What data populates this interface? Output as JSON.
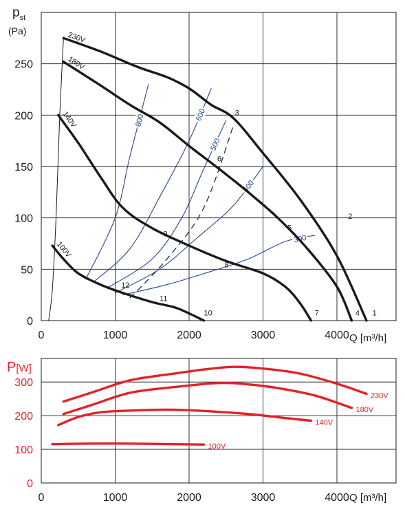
{
  "chart_data": [
    {
      "type": "line",
      "ylabel": "p",
      "ylabel_sub": "st",
      "ylabel_unit": "(Pa)",
      "xlabel": "Q [m³/h]",
      "xlim": [
        0,
        4800
      ],
      "ylim": [
        0,
        300
      ],
      "x_ticks": [
        "0",
        "1000",
        "2000",
        "3000",
        "4000"
      ],
      "y_ticks": [
        "0",
        "50",
        "100",
        "150",
        "200",
        "250"
      ],
      "grid": true,
      "series": [
        {
          "name": "230V",
          "points": [
            [
              300,
              275
            ],
            [
              800,
              262
            ],
            [
              1300,
              247
            ],
            [
              1700,
              237
            ],
            [
              2000,
              226
            ],
            [
              2300,
              210
            ],
            [
              2600,
              197
            ],
            [
              3000,
              163
            ],
            [
              3500,
              118
            ],
            [
              4000,
              63
            ],
            [
              4400,
              0
            ]
          ]
        },
        {
          "name": "180V",
          "points": [
            [
              300,
              252
            ],
            [
              800,
              229
            ],
            [
              1200,
              210
            ],
            [
              1600,
              193
            ],
            [
              2000,
              170
            ],
            [
              2400,
              148
            ],
            [
              2800,
              125
            ],
            [
              3200,
              100
            ],
            [
              3600,
              70
            ],
            [
              4000,
              33
            ],
            [
              4200,
              0
            ]
          ]
        },
        {
          "name": "140V",
          "points": [
            [
              230,
              200
            ],
            [
              500,
              173
            ],
            [
              800,
              140
            ],
            [
              1100,
              110
            ],
            [
              1500,
              90
            ],
            [
              2000,
              73
            ],
            [
              2500,
              58
            ],
            [
              3000,
              46
            ],
            [
              3300,
              33
            ],
            [
              3500,
              17
            ],
            [
              3650,
              0
            ]
          ]
        },
        {
          "name": "100V",
          "points": [
            [
              150,
              73
            ],
            [
              300,
              60
            ],
            [
              500,
              46
            ],
            [
              800,
              35
            ],
            [
              1100,
              27
            ],
            [
              1500,
              18
            ],
            [
              1800,
              13
            ],
            [
              2000,
              7
            ],
            [
              2200,
              0
            ]
          ]
        }
      ],
      "rpm_lines": [
        {
          "name": "800",
          "points": [
            [
              600,
              40
            ],
            [
              1000,
              100
            ],
            [
              1200,
              160
            ],
            [
              1450,
              230
            ]
          ]
        },
        {
          "name": "600",
          "points": [
            [
              700,
              37
            ],
            [
              1200,
              70
            ],
            [
              1600,
              120
            ],
            [
              2000,
              175
            ],
            [
              2300,
              226
            ]
          ]
        },
        {
          "name": "500",
          "points": [
            [
              900,
              32
            ],
            [
              1500,
              60
            ],
            [
              1900,
              100
            ],
            [
              2200,
              148
            ],
            [
              2500,
              195
            ]
          ]
        },
        {
          "name": "400",
          "points": [
            [
              1000,
              27
            ],
            [
              1600,
              50
            ],
            [
              2100,
              80
            ],
            [
              2600,
              112
            ],
            [
              3000,
              150
            ]
          ]
        },
        {
          "name": "300",
          "points": [
            [
              1100,
              25
            ],
            [
              1700,
              35
            ],
            [
              2300,
              48
            ],
            [
              2800,
              60
            ],
            [
              3300,
              77
            ],
            [
              3700,
              83
            ]
          ]
        }
      ],
      "dashed_line": [
        [
          1200,
          22
        ],
        [
          1700,
          60
        ],
        [
          2200,
          110
        ],
        [
          2600,
          190
        ]
      ],
      "point_labels": [
        {
          "text": "1",
          "x": 4480,
          "y": 5
        },
        {
          "text": "2",
          "x": 4150,
          "y": 99
        },
        {
          "text": "3",
          "x": 2620,
          "y": 200
        },
        {
          "text": "4",
          "x": 4250,
          "y": 5
        },
        {
          "text": "5",
          "x": 3330,
          "y": 88
        },
        {
          "text": "6",
          "x": 2380,
          "y": 155
        },
        {
          "text": "7",
          "x": 3700,
          "y": 5
        },
        {
          "text": "8",
          "x": 2480,
          "y": 52
        },
        {
          "text": "9",
          "x": 1650,
          "y": 82
        },
        {
          "text": "10",
          "x": 2200,
          "y": 5
        },
        {
          "text": "11",
          "x": 1600,
          "y": 19
        },
        {
          "text": "12",
          "x": 1080,
          "y": 32
        }
      ]
    },
    {
      "type": "line",
      "ylabel": "P",
      "ylabel_unit": "[W]",
      "xlabel": "Q [m³/h]",
      "xlim": [
        0,
        4800
      ],
      "ylim": [
        0,
        370
      ],
      "x_ticks": [
        "0",
        "1000",
        "2000",
        "3000",
        "4000"
      ],
      "y_ticks": [
        "0",
        "100",
        "200",
        "300"
      ],
      "grid": true,
      "series": [
        {
          "name": "230V",
          "points": [
            [
              300,
              242
            ],
            [
              700,
              270
            ],
            [
              1200,
              305
            ],
            [
              1800,
              325
            ],
            [
              2200,
              337
            ],
            [
              2600,
              345
            ],
            [
              3000,
              340
            ],
            [
              3500,
              325
            ],
            [
              4000,
              295
            ],
            [
              4400,
              265
            ]
          ]
        },
        {
          "name": "180V",
          "points": [
            [
              300,
              205
            ],
            [
              700,
              233
            ],
            [
              1200,
              268
            ],
            [
              1800,
              285
            ],
            [
              2400,
              297
            ],
            [
              2800,
              293
            ],
            [
              3200,
              282
            ],
            [
              3700,
              260
            ],
            [
              4200,
              223
            ]
          ]
        },
        {
          "name": "140V",
          "points": [
            [
              230,
              172
            ],
            [
              500,
              196
            ],
            [
              800,
              210
            ],
            [
              1200,
              215
            ],
            [
              1700,
              218
            ],
            [
              2200,
              214
            ],
            [
              2800,
              205
            ],
            [
              3300,
              193
            ],
            [
              3650,
              185
            ]
          ]
        },
        {
          "name": "100V",
          "points": [
            [
              150,
              115
            ],
            [
              600,
              117
            ],
            [
              1200,
              117
            ],
            [
              1800,
              115
            ],
            [
              2200,
              114
            ]
          ]
        }
      ]
    }
  ],
  "colors": {
    "curve": "#1a1a1a",
    "rpm": "#23458f",
    "power": "#e32229"
  }
}
